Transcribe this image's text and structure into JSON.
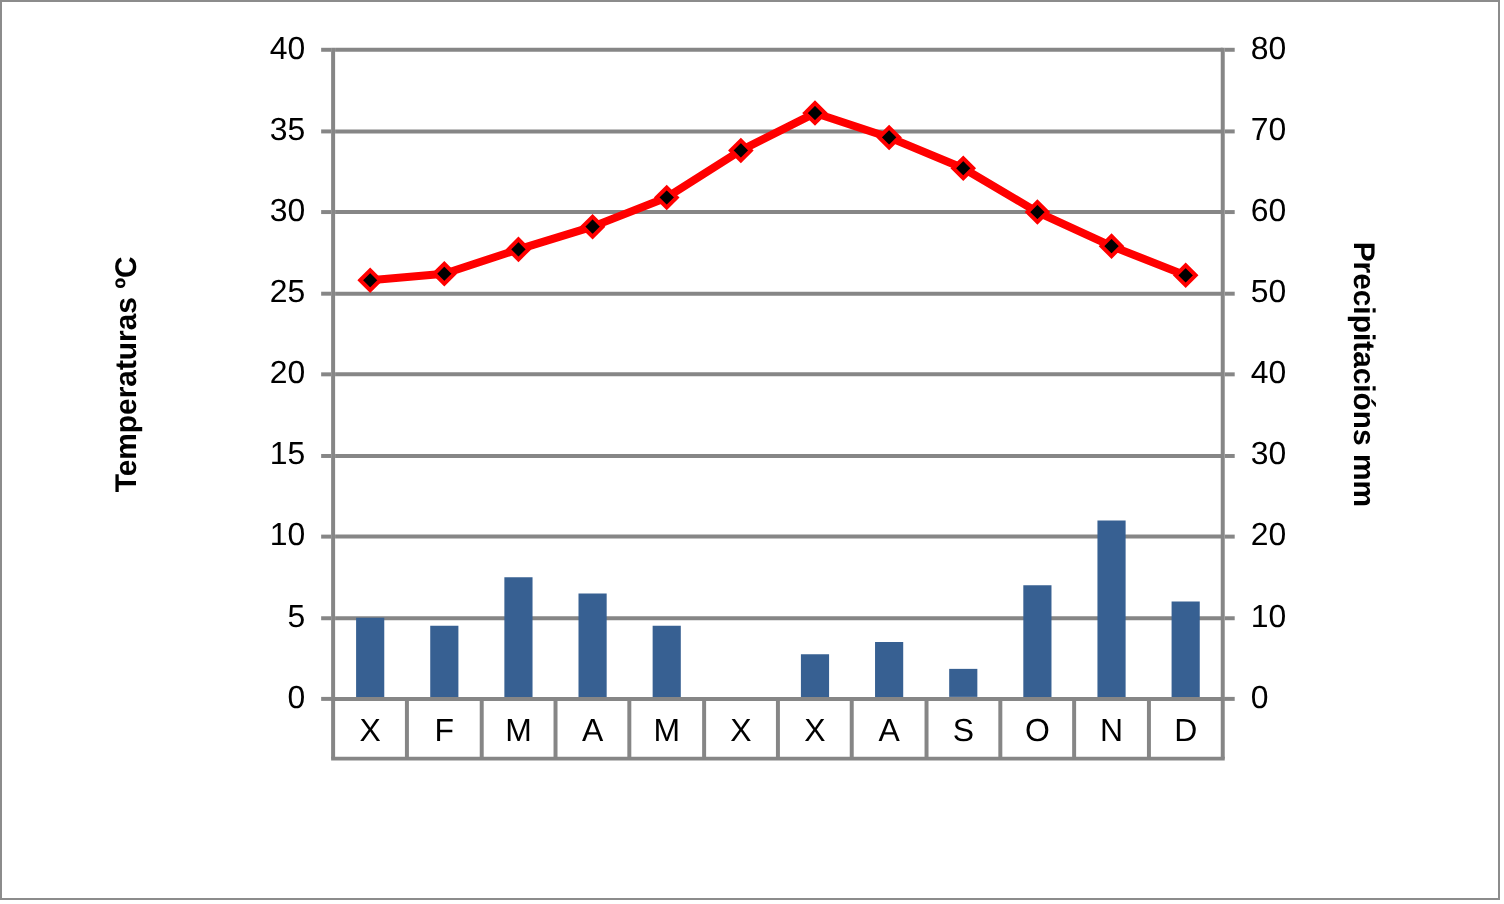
{
  "chart_data": {
    "type": "bar",
    "categories": [
      "X",
      "F",
      "M",
      "A",
      "M",
      "X",
      "X",
      "A",
      "S",
      "O",
      "N",
      "D"
    ],
    "series": [
      {
        "axis": "y2",
        "color": "#376092",
        "values": [
          10,
          9,
          15,
          13,
          9,
          0,
          5.5,
          7,
          3.7,
          14,
          22,
          12
        ]
      },
      {
        "type": "line",
        "color": "#ff0000",
        "values": [
          25.8,
          26.2,
          27.7,
          29.1,
          30.9,
          33.8,
          36.1,
          34.6,
          32.7,
          30.0,
          27.9,
          26.1
        ]
      }
    ],
    "ylabel": "Temperaturas ºC",
    "y2label": "Precipitacións mm",
    "ylim": [
      0,
      40
    ],
    "yticks": [
      0,
      5,
      10,
      15,
      20,
      25,
      30,
      35,
      40
    ],
    "y2lim": [
      0,
      80
    ],
    "y2ticks": [
      0,
      10,
      20,
      30,
      40,
      50,
      60,
      70,
      80
    ],
    "grid": "y",
    "legend": false,
    "marker": "diamond",
    "line_style": "solid"
  }
}
